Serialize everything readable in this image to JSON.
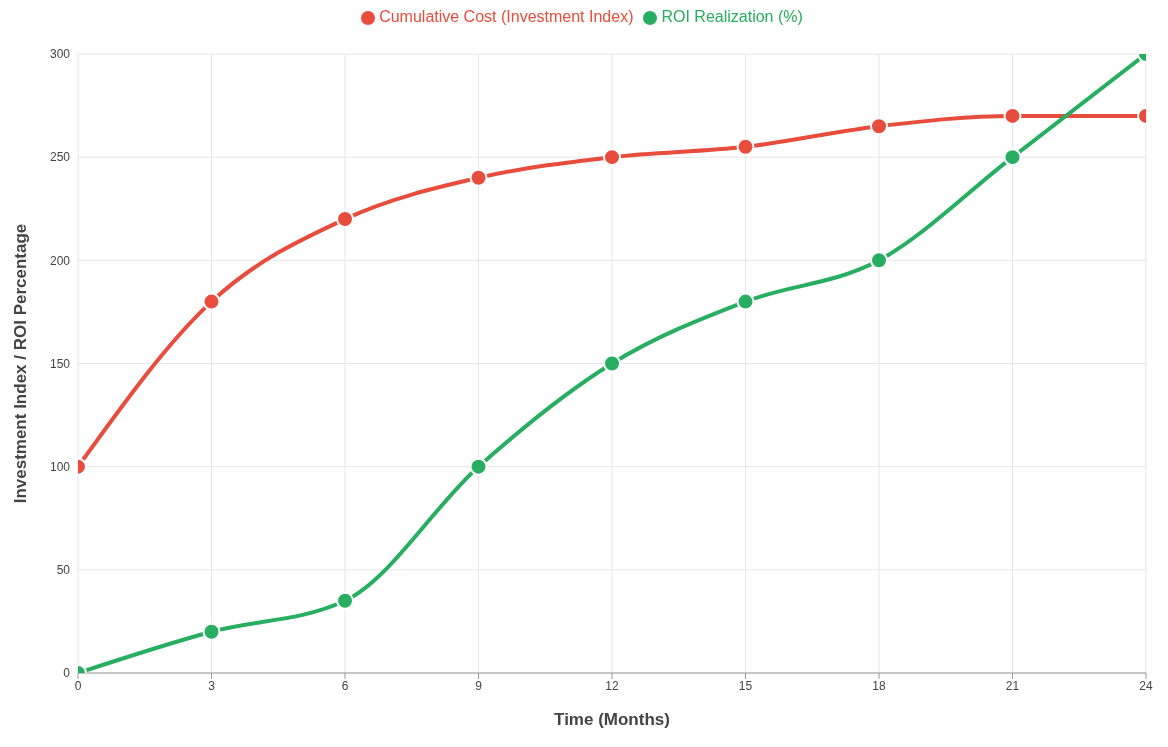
{
  "chart_data": {
    "type": "line",
    "xlabel": "Time (Months)",
    "ylabel": "Investment Index / ROI Percentage",
    "x": [
      0,
      3,
      6,
      9,
      12,
      15,
      18,
      21,
      24
    ],
    "series": [
      {
        "name": "Cumulative Cost (Investment Index)",
        "color": "#e74c3c",
        "values": [
          100,
          180,
          220,
          240,
          250,
          255,
          265,
          270,
          270
        ]
      },
      {
        "name": "ROI Realization (%)",
        "color": "#27ae60",
        "values": [
          0,
          20,
          35,
          100,
          150,
          180,
          200,
          250,
          300
        ]
      }
    ],
    "xlim": [
      0,
      24
    ],
    "xticks": [
      0,
      3,
      6,
      9,
      12,
      15,
      18,
      21,
      24
    ],
    "ylim": [
      0,
      300
    ],
    "yticks": [
      0,
      50,
      100,
      150,
      200,
      250,
      300
    ],
    "grid": true,
    "legend": "top",
    "marker": "circle",
    "line_style": "solid"
  }
}
